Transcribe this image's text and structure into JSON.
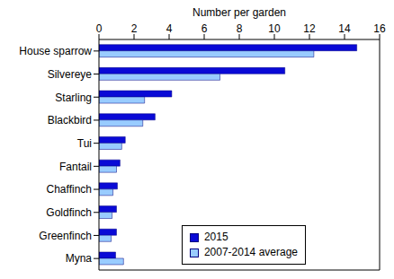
{
  "chart_data": {
    "type": "bar",
    "orientation": "horizontal",
    "x_label": "Number per garden",
    "categories": [
      "House sparrow",
      "Silvereye",
      "Starling",
      "Blackbird",
      "Tui",
      "Fantail",
      "Chaffinch",
      "Goldfinch",
      "Greenfinch",
      "Myna"
    ],
    "series": [
      {
        "name": "2015",
        "color": "#0a0ad6",
        "values": [
          14.7,
          10.6,
          4.15,
          3.2,
          1.5,
          1.2,
          1.05,
          1.0,
          1.0,
          0.95
        ]
      },
      {
        "name": "2007-2014 average",
        "color": "#99ccff",
        "values": [
          12.25,
          6.9,
          2.6,
          2.5,
          1.3,
          1.0,
          0.8,
          0.75,
          0.7,
          1.4
        ]
      }
    ],
    "xlim": [
      0,
      16
    ],
    "xticks": [
      0,
      2,
      4,
      6,
      8,
      10,
      12,
      14,
      16
    ],
    "grid": false,
    "legend": "lower right"
  }
}
